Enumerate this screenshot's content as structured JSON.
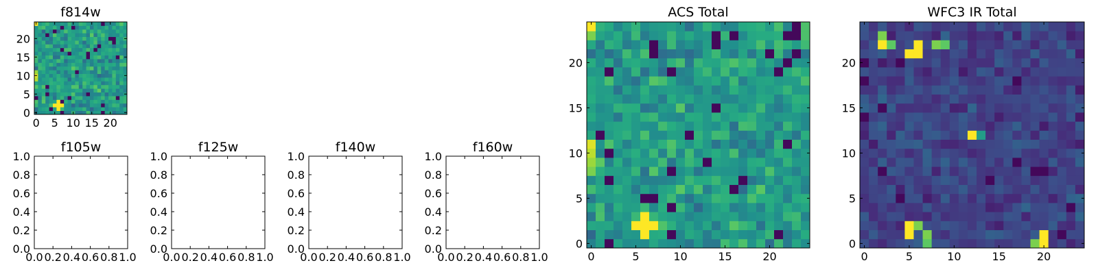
{
  "chart_data": [
    {
      "type": "heatmap",
      "title": "f814w",
      "rows": 25,
      "cols": 25,
      "xlim": [
        -0.5,
        24.5
      ],
      "ylim": [
        -0.5,
        24.5
      ],
      "xticks": [
        0,
        5,
        10,
        15,
        20
      ],
      "yticks": [
        0,
        5,
        10,
        15,
        20
      ],
      "colormap": "viridis",
      "vmin": 0,
      "vmax": 1,
      "base_level": 0.55,
      "noise": 0.22,
      "bright_pixels": [
        {
          "x": 5,
          "y": 2,
          "v": 1.0
        },
        {
          "x": 6,
          "y": 2,
          "v": 1.0
        },
        {
          "x": 7,
          "y": 2,
          "v": 1.0
        },
        {
          "x": 6,
          "y": 1,
          "v": 1.0
        },
        {
          "x": 6,
          "y": 3,
          "v": 1.0
        },
        {
          "x": 0,
          "y": 10,
          "v": 0.95
        },
        {
          "x": 0,
          "y": 9,
          "v": 0.9
        },
        {
          "x": 0,
          "y": 11,
          "v": 0.85
        },
        {
          "x": 0,
          "y": 24,
          "v": 1.0
        }
      ],
      "seed": 11
    },
    {
      "type": "empty_axes",
      "title": "f105w",
      "xlim": [
        0,
        1
      ],
      "ylim": [
        0,
        1
      ],
      "xticks": [
        "0.0",
        "0.2",
        "0.4",
        "0.6",
        "0.8",
        "1.0"
      ],
      "yticks": [
        "0.0",
        "0.2",
        "0.4",
        "0.6",
        "0.8",
        "1.0"
      ]
    },
    {
      "type": "empty_axes",
      "title": "f125w",
      "xlim": [
        0,
        1
      ],
      "ylim": [
        0,
        1
      ],
      "xticks": [
        "0.0",
        "0.2",
        "0.4",
        "0.6",
        "0.8",
        "1.0"
      ],
      "yticks": [
        "0.0",
        "0.2",
        "0.4",
        "0.6",
        "0.8",
        "1.0"
      ]
    },
    {
      "type": "empty_axes",
      "title": "f140w",
      "xlim": [
        0,
        1
      ],
      "ylim": [
        0,
        1
      ],
      "xticks": [
        "0.0",
        "0.2",
        "0.4",
        "0.6",
        "0.8",
        "1.0"
      ],
      "yticks": [
        "0.0",
        "0.2",
        "0.4",
        "0.6",
        "0.8",
        "1.0"
      ]
    },
    {
      "type": "empty_axes",
      "title": "f160w",
      "xlim": [
        0,
        1
      ],
      "ylim": [
        0,
        1
      ],
      "xticks": [
        "0.0",
        "0.2",
        "0.4",
        "0.6",
        "0.8",
        "1.0"
      ],
      "yticks": [
        "0.0",
        "0.2",
        "0.4",
        "0.6",
        "0.8",
        "1.0"
      ]
    },
    {
      "type": "heatmap",
      "title": "ACS Total",
      "rows": 25,
      "cols": 25,
      "xlim": [
        -0.5,
        24.5
      ],
      "ylim": [
        -0.5,
        24.5
      ],
      "xticks": [
        0,
        5,
        10,
        15,
        20
      ],
      "yticks": [
        0,
        5,
        10,
        15,
        20
      ],
      "colormap": "viridis",
      "vmin": 0,
      "vmax": 1,
      "base_level": 0.55,
      "noise": 0.22,
      "bright_pixels": [
        {
          "x": 5,
          "y": 2,
          "v": 1.0
        },
        {
          "x": 6,
          "y": 2,
          "v": 1.0
        },
        {
          "x": 7,
          "y": 2,
          "v": 1.0
        },
        {
          "x": 6,
          "y": 1,
          "v": 1.0
        },
        {
          "x": 6,
          "y": 3,
          "v": 1.0
        },
        {
          "x": 0,
          "y": 11,
          "v": 0.95
        },
        {
          "x": 0,
          "y": 10,
          "v": 0.9
        },
        {
          "x": 0,
          "y": 9,
          "v": 0.85
        },
        {
          "x": 0,
          "y": 8,
          "v": 0.8
        },
        {
          "x": 1,
          "y": 9,
          "v": 0.75
        },
        {
          "x": 0,
          "y": 24,
          "v": 1.0
        },
        {
          "x": 0,
          "y": 23,
          "v": 0.8
        }
      ],
      "seed": 11
    },
    {
      "type": "heatmap",
      "title": "WFC3 IR Total",
      "rows": 25,
      "cols": 25,
      "xlim": [
        -0.5,
        24.5
      ],
      "ylim": [
        -0.5,
        24.5
      ],
      "xticks": [
        0,
        5,
        10,
        15,
        20
      ],
      "yticks": [
        0,
        5,
        10,
        15,
        20
      ],
      "colormap": "viridis",
      "vmin": 0,
      "vmax": 1,
      "base_level": 0.2,
      "noise": 0.14,
      "bright_pixels": [
        {
          "x": 5,
          "y": 21,
          "v": 1.0
        },
        {
          "x": 6,
          "y": 21,
          "v": 1.0
        },
        {
          "x": 6,
          "y": 22,
          "v": 1.0
        },
        {
          "x": 2,
          "y": 22,
          "v": 1.0
        },
        {
          "x": 2,
          "y": 23,
          "v": 0.8
        },
        {
          "x": 3,
          "y": 22,
          "v": 0.75
        },
        {
          "x": 8,
          "y": 22,
          "v": 0.8
        },
        {
          "x": 9,
          "y": 22,
          "v": 0.75
        },
        {
          "x": 5,
          "y": 2,
          "v": 1.0
        },
        {
          "x": 5,
          "y": 1,
          "v": 1.0
        },
        {
          "x": 6,
          "y": 2,
          "v": 0.8
        },
        {
          "x": 7,
          "y": 1,
          "v": 0.8
        },
        {
          "x": 7,
          "y": 0,
          "v": 0.75
        },
        {
          "x": 20,
          "y": 1,
          "v": 1.0
        },
        {
          "x": 20,
          "y": 0,
          "v": 1.0
        },
        {
          "x": 19,
          "y": 0,
          "v": 0.8
        },
        {
          "x": 12,
          "y": 12,
          "v": 1.0
        },
        {
          "x": 13,
          "y": 12,
          "v": 0.55
        }
      ],
      "seed": 29
    }
  ]
}
